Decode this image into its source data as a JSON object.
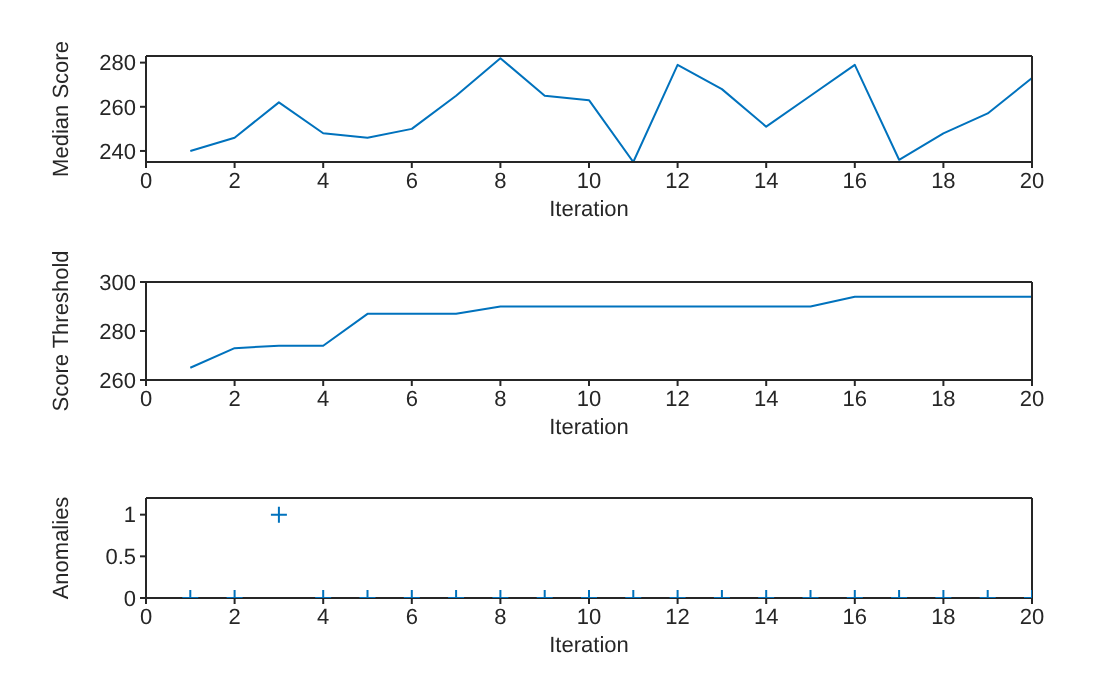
{
  "chart_data": [
    {
      "type": "line",
      "xlabel": "Iteration",
      "ylabel": "Median Score",
      "x": [
        1,
        2,
        3,
        4,
        5,
        6,
        7,
        8,
        9,
        10,
        11,
        12,
        13,
        14,
        15,
        16,
        17,
        18,
        19,
        20
      ],
      "series": [
        {
          "color": "#0072bd",
          "values": [
            240,
            246,
            262,
            248,
            246,
            250,
            265,
            282,
            265,
            263,
            235,
            279,
            268,
            251,
            265,
            279,
            236,
            248,
            257,
            273
          ]
        }
      ],
      "xlim": [
        0,
        20
      ],
      "xticks": [
        0,
        2,
        4,
        6,
        8,
        10,
        12,
        14,
        16,
        18,
        20
      ],
      "ylim": [
        235,
        283
      ],
      "yticks": [
        240,
        260,
        280
      ],
      "marker": "none",
      "line_style": "solid"
    },
    {
      "type": "line",
      "xlabel": "Iteration",
      "ylabel": "Score Threshold",
      "x": [
        1,
        2,
        3,
        4,
        5,
        6,
        7,
        8,
        9,
        10,
        11,
        12,
        13,
        14,
        15,
        16,
        17,
        18,
        19,
        20
      ],
      "series": [
        {
          "color": "#0072bd",
          "values": [
            265,
            273,
            274,
            274,
            287,
            287,
            287,
            290,
            290,
            290,
            290,
            290,
            290,
            290,
            290,
            294,
            294,
            294,
            294,
            294
          ]
        }
      ],
      "xlim": [
        0,
        20
      ],
      "xticks": [
        0,
        2,
        4,
        6,
        8,
        10,
        12,
        14,
        16,
        18,
        20
      ],
      "ylim": [
        260,
        300
      ],
      "yticks": [
        260,
        280,
        300
      ],
      "marker": "none",
      "line_style": "solid"
    },
    {
      "type": "scatter",
      "xlabel": "Iteration",
      "ylabel": "Anomalies",
      "x": [
        1,
        2,
        3,
        4,
        5,
        6,
        7,
        8,
        9,
        10,
        11,
        12,
        13,
        14,
        15,
        16,
        17,
        18,
        19,
        20
      ],
      "series": [
        {
          "color": "#0072bd",
          "values": [
            0,
            0,
            1,
            0,
            0,
            0,
            0,
            0,
            0,
            0,
            0,
            0,
            0,
            0,
            0,
            0,
            0,
            0,
            0,
            0
          ]
        }
      ],
      "xlim": [
        0,
        20
      ],
      "xticks": [
        0,
        2,
        4,
        6,
        8,
        10,
        12,
        14,
        16,
        18,
        20
      ],
      "ylim": [
        0,
        1.2
      ],
      "yticks": [
        0,
        0.5,
        1
      ],
      "marker": "cross"
    }
  ]
}
